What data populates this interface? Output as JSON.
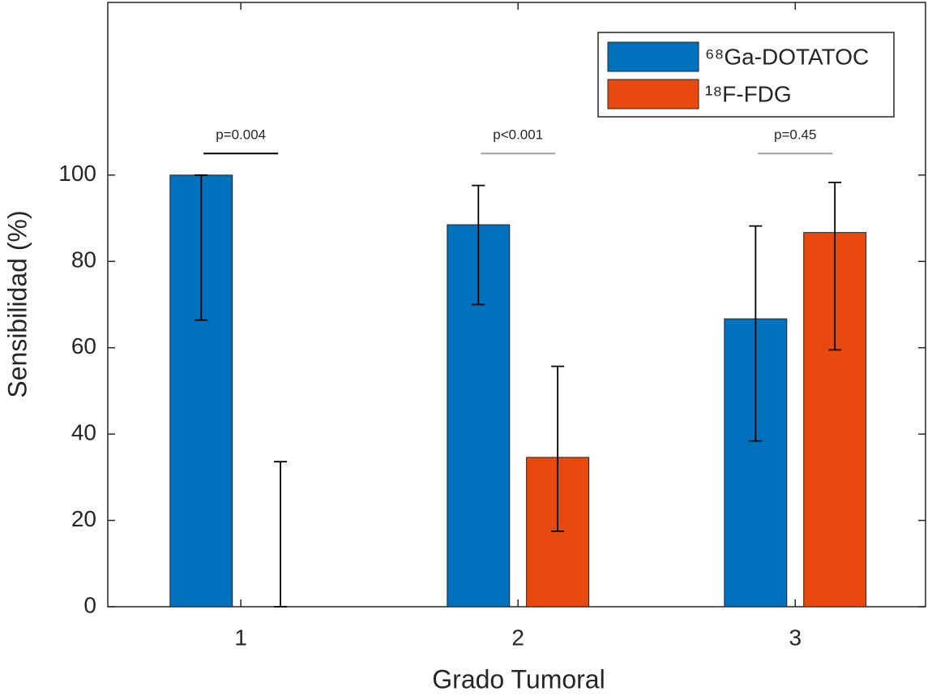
{
  "chart_data": {
    "type": "bar",
    "x_label": "Grado Tumoral",
    "y_label": "Sensibilidad (%)",
    "x": [
      1,
      2,
      3
    ],
    "xlim": [
      0.52,
      3.47
    ],
    "xticks": [
      1,
      2,
      3
    ],
    "ylim": [
      0,
      140
    ],
    "yticks": [
      0,
      20,
      40,
      60,
      80,
      100
    ],
    "legend": "northeast",
    "series": [
      {
        "name": "⁶⁸Ga-DOTATOC",
        "color": "#0072bd",
        "values": [
          100,
          88.5,
          66.7
        ],
        "lower": [
          66.4,
          70,
          38.4
        ],
        "upper": [
          100,
          97.6,
          88.2
        ]
      },
      {
        "name": "¹⁸F-FDG",
        "color": "#e8490f",
        "values": [
          0,
          34.6,
          86.7
        ],
        "lower": [
          0,
          17.5,
          59.5
        ],
        "upper": [
          33.6,
          55.7,
          98.3
        ]
      }
    ],
    "annotations": [
      {
        "text": "p=0.004",
        "x": 1,
        "y": 105,
        "color": "#000000"
      },
      {
        "text": "p<0.001",
        "x": 2,
        "y": 105,
        "color": "#a0a0a0"
      },
      {
        "text": "p=0.45",
        "x": 3,
        "y": 105,
        "color": "#a0a0a0"
      }
    ]
  }
}
